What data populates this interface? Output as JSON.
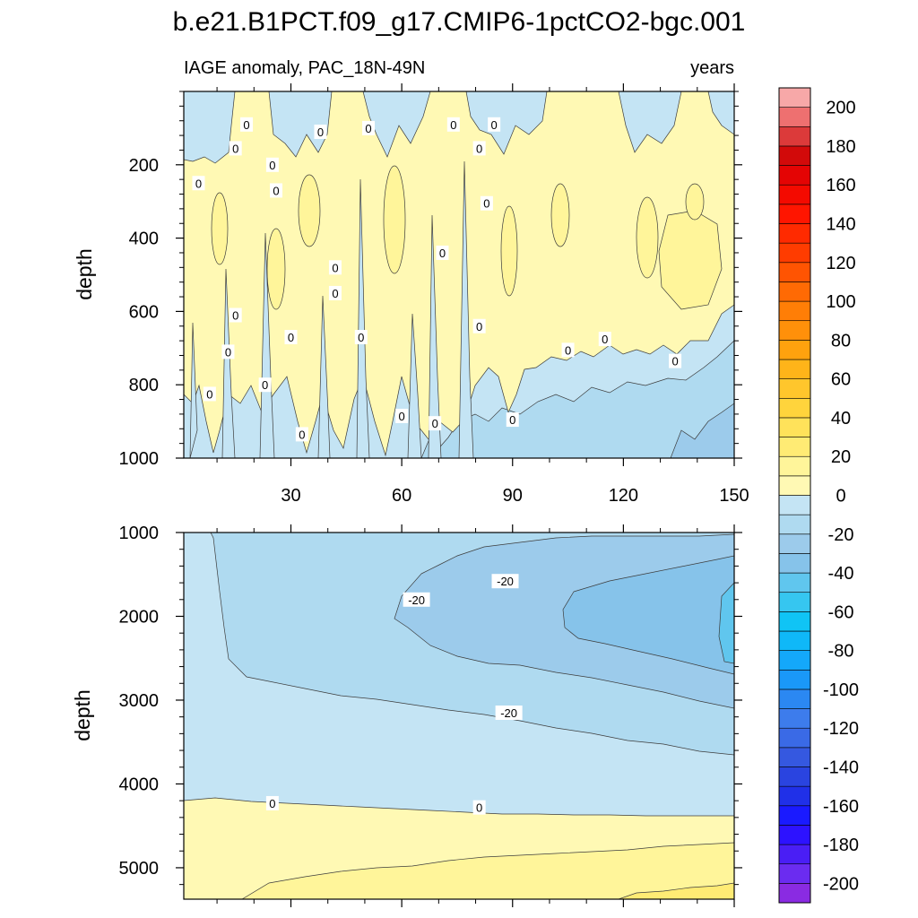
{
  "chart_data": {
    "type": "heatmap",
    "title": "b.e21.B1PCT.f09_g17.CMIP6-1pctCO2-bgc.001",
    "variable_label": "IAGE anomaly, PAC_18N-49N",
    "units_label": "years",
    "x": {
      "min": 1,
      "max": 150,
      "ticks": [
        30,
        60,
        90,
        120,
        150
      ],
      "tick_labels": [
        "30",
        "60",
        "90",
        "120",
        "150"
      ]
    },
    "panels": [
      {
        "name": "upper",
        "ylabel": "depth",
        "ylim": [
          0,
          1000
        ],
        "yticks": [
          200,
          400,
          600,
          800,
          1000
        ],
        "ytick_labels": [
          "200",
          "400",
          "600",
          "800",
          "1000"
        ],
        "contour_labels": [
          {
            "text": "0",
            "x": 18,
            "y": 90
          },
          {
            "text": "0",
            "x": 15,
            "y": 155
          },
          {
            "text": "0",
            "x": 38,
            "y": 110
          },
          {
            "text": "0",
            "x": 51,
            "y": 100
          },
          {
            "text": "0",
            "x": 74,
            "y": 90
          },
          {
            "text": "0",
            "x": 85,
            "y": 90
          },
          {
            "text": "0",
            "x": 5,
            "y": 250
          },
          {
            "text": "0",
            "x": 25,
            "y": 200
          },
          {
            "text": "0",
            "x": 26,
            "y": 270
          },
          {
            "text": "0",
            "x": 81,
            "y": 155
          },
          {
            "text": "0",
            "x": 83,
            "y": 305
          },
          {
            "text": "0",
            "x": 71,
            "y": 440
          },
          {
            "text": "0",
            "x": 42,
            "y": 480
          },
          {
            "text": "0",
            "x": 42,
            "y": 550
          },
          {
            "text": "0",
            "x": 15,
            "y": 610
          },
          {
            "text": "0",
            "x": 30,
            "y": 670
          },
          {
            "text": "0",
            "x": 49,
            "y": 670
          },
          {
            "text": "0",
            "x": 81,
            "y": 640
          },
          {
            "text": "0",
            "x": 13,
            "y": 710
          },
          {
            "text": "0",
            "x": 105,
            "y": 705
          },
          {
            "text": "0",
            "x": 115,
            "y": 675
          },
          {
            "text": "0",
            "x": 134,
            "y": 735
          },
          {
            "text": "0",
            "x": 8,
            "y": 825
          },
          {
            "text": "0",
            "x": 23,
            "y": 800
          },
          {
            "text": "0",
            "x": 60,
            "y": 885
          },
          {
            "text": "0",
            "x": 69,
            "y": 905
          },
          {
            "text": "0",
            "x": 90,
            "y": 895
          },
          {
            "text": "0",
            "x": 33,
            "y": 935
          }
        ]
      },
      {
        "name": "lower",
        "ylabel": "depth",
        "ylim": [
          1000,
          5375
        ],
        "yticks": [
          1000,
          2000,
          3000,
          4000,
          5000
        ],
        "ytick_labels": [
          "1000",
          "2000",
          "3000",
          "4000",
          "5000"
        ],
        "contour_labels": [
          {
            "text": "-20",
            "x": 64,
            "y": 1800
          },
          {
            "text": "-20",
            "x": 88,
            "y": 1580
          },
          {
            "text": "-20",
            "x": 89,
            "y": 3150
          },
          {
            "text": "0",
            "x": 25,
            "y": 4230
          },
          {
            "text": "0",
            "x": 81,
            "y": 4280
          }
        ]
      }
    ],
    "colorbar": {
      "levels": [
        -210,
        -200,
        -190,
        -180,
        -170,
        -160,
        -150,
        -140,
        -130,
        -120,
        -110,
        -100,
        -90,
        -80,
        -70,
        -60,
        -50,
        -40,
        -30,
        -20,
        -10,
        0,
        10,
        20,
        30,
        40,
        50,
        60,
        70,
        80,
        90,
        100,
        110,
        120,
        130,
        140,
        150,
        160,
        170,
        180,
        190,
        200,
        210
      ],
      "colors": [
        "#8a2be2",
        "#6b2cf0",
        "#4a1ef5",
        "#2d12ff",
        "#1a1aff",
        "#2030e8",
        "#2a44e0",
        "#3558e0",
        "#3a6ae6",
        "#3d7cec",
        "#2b88f2",
        "#1a98f8",
        "#14a8fa",
        "#0fb8f8",
        "#10c4f5",
        "#36c6f0",
        "#60c6ee",
        "#86c3ea",
        "#9ccbeb",
        "#afdaf0",
        "#c4e4f4",
        "#fff9b4",
        "#fff59a",
        "#ffeb74",
        "#ffe25a",
        "#ffd43c",
        "#ffc62c",
        "#ffb419",
        "#ffa20e",
        "#ff900a",
        "#ff7e06",
        "#ff6a04",
        "#ff5402",
        "#ff3c00",
        "#ff2a00",
        "#ff1500",
        "#f40a00",
        "#e40404",
        "#d20a0a",
        "#dc3a3a",
        "#ee7070",
        "#f7a8a8"
      ],
      "tick_labels": [
        "-200",
        "-180",
        "-160",
        "-140",
        "-120",
        "-100",
        "-80",
        "-60",
        "-40",
        "-20",
        "0",
        "20",
        "40",
        "60",
        "80",
        "100",
        "120",
        "140",
        "160",
        "180",
        "200"
      ],
      "tick_values": [
        -200,
        -180,
        -160,
        -140,
        -120,
        -100,
        -80,
        -60,
        -40,
        -20,
        0,
        20,
        40,
        60,
        80,
        100,
        120,
        140,
        160,
        180,
        200
      ]
    }
  }
}
